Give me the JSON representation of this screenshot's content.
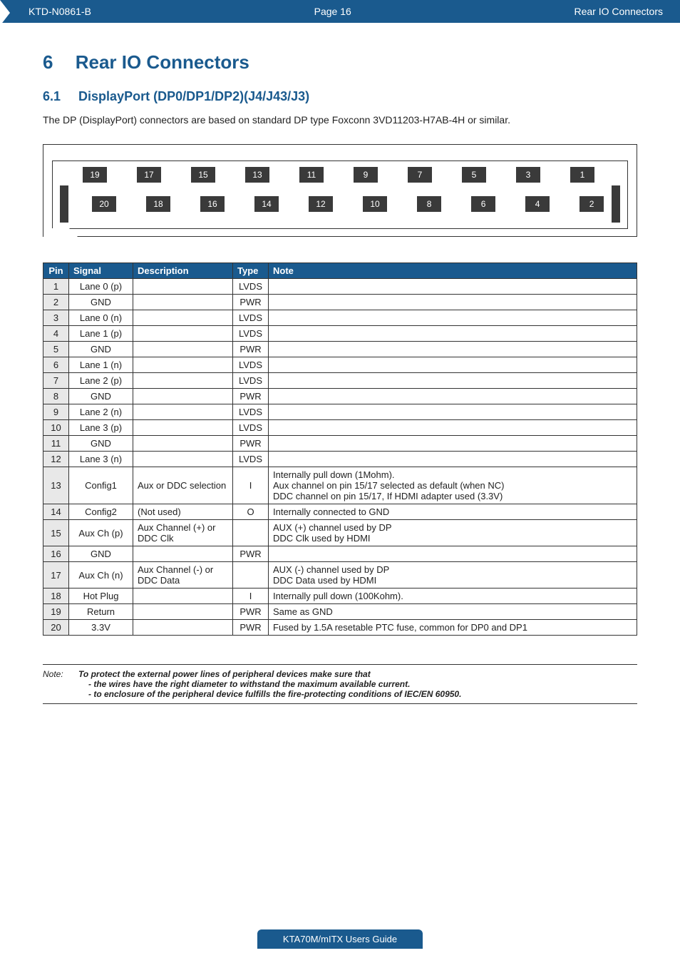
{
  "header": {
    "doc_id": "KTD-N0861-B",
    "page_label": "Page 16",
    "section_label": "Rear IO Connectors",
    "bg_color": "#1a5a8e",
    "text_color": "#ffffff"
  },
  "chapter": {
    "number": "6",
    "title": "Rear IO Connectors"
  },
  "section": {
    "number": "6.1",
    "title": "DisplayPort (DP0/DP1/DP2)(J4/J43/J3)"
  },
  "intro": "The DP (DisplayPort) connectors are based on standard DP type Foxconn 3VD11203-H7AB-4H or similar.",
  "diagram": {
    "top_row": [
      "19",
      "17",
      "15",
      "13",
      "11",
      "9",
      "7",
      "5",
      "3",
      "1"
    ],
    "bottom_row": [
      "20",
      "18",
      "16",
      "14",
      "12",
      "10",
      "8",
      "6",
      "4",
      "2"
    ],
    "pin_bg": "#3a3a3a",
    "pin_fg": "#ffffff",
    "border_color": "#333333"
  },
  "table": {
    "headers": {
      "pin": "Pin",
      "signal": "Signal",
      "description": "Description",
      "type": "Type",
      "note": "Note"
    },
    "header_bg": "#1a5a8e",
    "header_fg": "#ffffff",
    "pin_cell_bg": "#e8e8e8",
    "rows": [
      {
        "pin": "1",
        "signal": "Lane 0 (p)",
        "description": "",
        "type": "LVDS",
        "note": ""
      },
      {
        "pin": "2",
        "signal": "GND",
        "description": "",
        "type": "PWR",
        "note": ""
      },
      {
        "pin": "3",
        "signal": "Lane 0 (n)",
        "description": "",
        "type": "LVDS",
        "note": ""
      },
      {
        "pin": "4",
        "signal": "Lane 1 (p)",
        "description": "",
        "type": "LVDS",
        "note": ""
      },
      {
        "pin": "5",
        "signal": "GND",
        "description": "",
        "type": "PWR",
        "note": ""
      },
      {
        "pin": "6",
        "signal": "Lane 1 (n)",
        "description": "",
        "type": "LVDS",
        "note": ""
      },
      {
        "pin": "7",
        "signal": "Lane 2 (p)",
        "description": "",
        "type": "LVDS",
        "note": ""
      },
      {
        "pin": "8",
        "signal": "GND",
        "description": "",
        "type": "PWR",
        "note": ""
      },
      {
        "pin": "9",
        "signal": "Lane 2 (n)",
        "description": "",
        "type": "LVDS",
        "note": ""
      },
      {
        "pin": "10",
        "signal": "Lane 3 (p)",
        "description": "",
        "type": "LVDS",
        "note": ""
      },
      {
        "pin": "11",
        "signal": "GND",
        "description": "",
        "type": "PWR",
        "note": ""
      },
      {
        "pin": "12",
        "signal": "Lane 3 (n)",
        "description": "",
        "type": "LVDS",
        "note": ""
      },
      {
        "pin": "13",
        "signal": "Config1",
        "description": "Aux or DDC selection",
        "type": "I",
        "note": "Internally pull down (1Mohm).\nAux channel on pin 15/17 selected as default (when NC)\nDDC channel on pin 15/17, If HDMI adapter used (3.3V)"
      },
      {
        "pin": "14",
        "signal": "Config2",
        "description": "(Not used)",
        "type": "O",
        "note": "Internally connected to GND"
      },
      {
        "pin": "15",
        "signal": "Aux Ch (p)",
        "description": "Aux Channel (+) or DDC Clk",
        "type": "",
        "note": "AUX (+) channel used by DP\nDDC Clk used by HDMI"
      },
      {
        "pin": "16",
        "signal": "GND",
        "description": "",
        "type": "PWR",
        "note": ""
      },
      {
        "pin": "17",
        "signal": "Aux Ch (n)",
        "description": "Aux Channel (-) or DDC Data",
        "type": "",
        "note": "AUX (-) channel used by DP\nDDC Data used by HDMI"
      },
      {
        "pin": "18",
        "signal": "Hot Plug",
        "description": "",
        "type": "I",
        "note": "Internally pull down (100Kohm)."
      },
      {
        "pin": "19",
        "signal": "Return",
        "description": "",
        "type": "PWR",
        "note": "Same as GND"
      },
      {
        "pin": "20",
        "signal": "3.3V",
        "description": "",
        "type": "PWR",
        "note": "Fused by 1.5A resetable PTC fuse, common for DP0 and DP1"
      }
    ]
  },
  "note": {
    "label": "Note:",
    "line1": "To protect the external power lines of peripheral devices make sure that",
    "line2": "- the wires have the right diameter to withstand the maximum available current.",
    "line3": "- to enclosure of the peripheral device fulfills the fire-protecting conditions of IEC/EN 60950."
  },
  "footer": {
    "text": "KTA70M/mITX Users Guide"
  }
}
